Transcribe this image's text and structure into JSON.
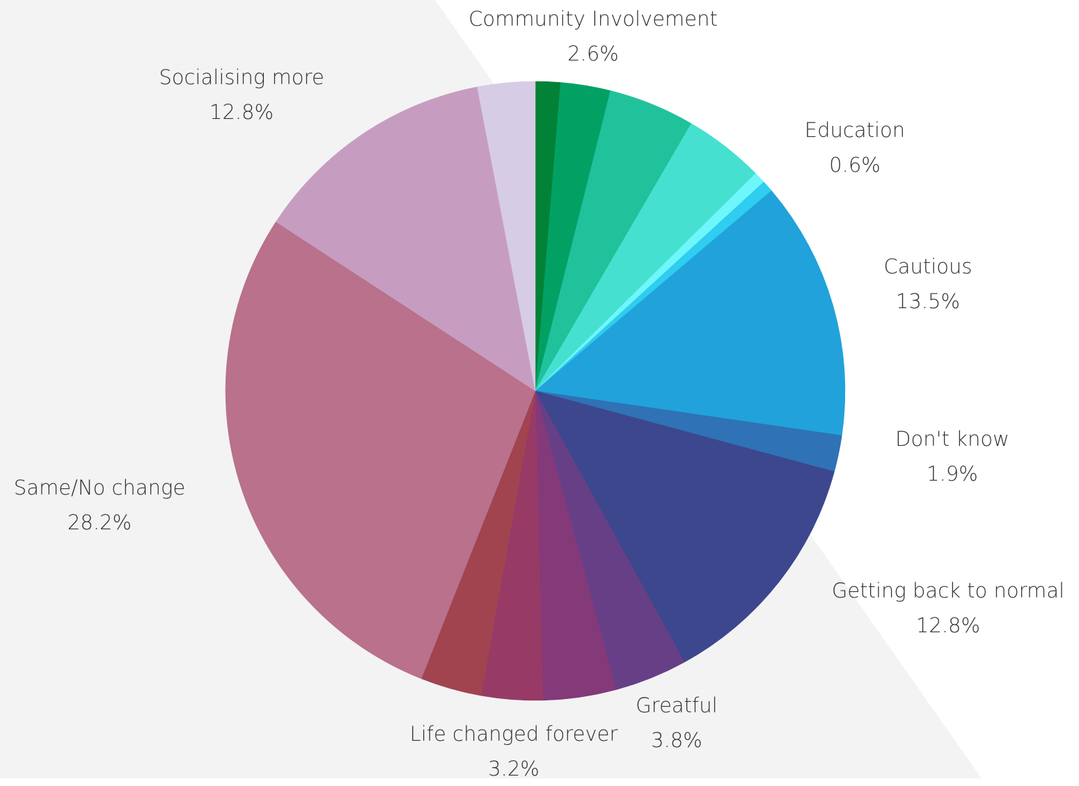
{
  "chart_data": {
    "type": "pie",
    "start_angle_deg": 0,
    "direction": "clockwise",
    "slices": [
      {
        "label": "",
        "value": 1.3,
        "color": "#028236"
      },
      {
        "label": "Community Involvement",
        "value": 2.6,
        "color": "#03a064"
      },
      {
        "label": "",
        "value": 4.5,
        "color": "#20c29b"
      },
      {
        "label": "",
        "value": 4.2,
        "color": "#46e0d0"
      },
      {
        "label": "Education",
        "value": 0.6,
        "color": "#6ef7fb"
      },
      {
        "label": "",
        "value": 0.6,
        "color": "#2fcdef"
      },
      {
        "label": "Cautious",
        "value": 13.5,
        "color": "#21a2da"
      },
      {
        "label": "Don't know",
        "value": 1.9,
        "color": "#2f72b6"
      },
      {
        "label": "Getting back to normal",
        "value": 12.8,
        "color": "#3c478d"
      },
      {
        "label": "",
        "value": 3.8,
        "color": "#673f86"
      },
      {
        "label": "Greatful",
        "value": 3.8,
        "color": "#843979"
      },
      {
        "label": "Life changed forever",
        "value": 3.2,
        "color": "#973a66"
      },
      {
        "label": "",
        "value": 3.2,
        "color": "#a14450"
      },
      {
        "label": "Same/No change",
        "value": 28.2,
        "color": "#b9718c"
      },
      {
        "label": "Socialising more",
        "value": 12.8,
        "color": "#c69dc1"
      },
      {
        "label": "",
        "value": 3.0,
        "color": "#d7cce5"
      }
    ],
    "labels": [
      {
        "name": "Community Involvement",
        "pct": "2.6%"
      },
      {
        "name": "Education",
        "pct": "0.6%"
      },
      {
        "name": "Cautious",
        "pct": "13.5%"
      },
      {
        "name": "Don't know",
        "pct": "1.9%"
      },
      {
        "name": "Getting back to normal",
        "pct": "12.8%"
      },
      {
        "name": "Greatful",
        "pct": "3.8%"
      },
      {
        "name": "Life changed forever",
        "pct": "3.2%"
      },
      {
        "name": "Same/No change",
        "pct": "28.2%"
      },
      {
        "name": "Socialising more",
        "pct": "12.8%"
      }
    ],
    "background_color": "#f3f3f3"
  }
}
